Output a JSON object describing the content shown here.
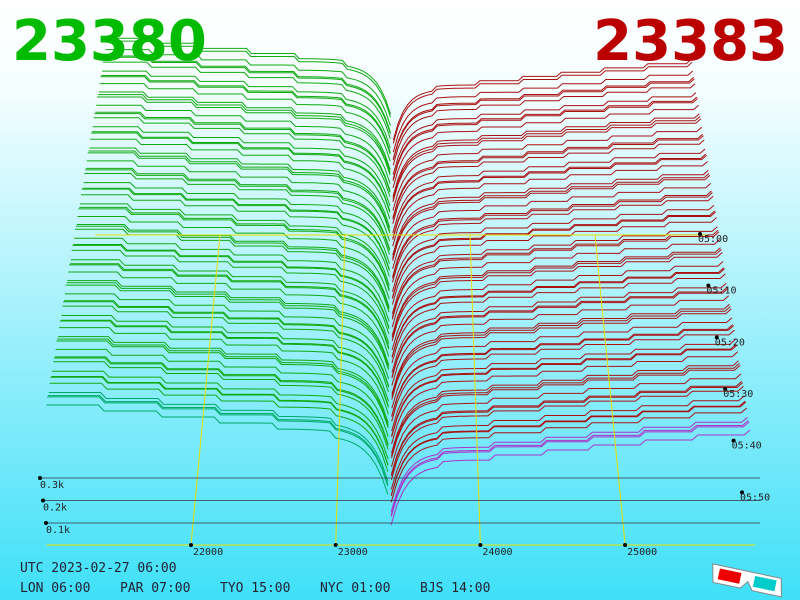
{
  "header": {
    "bid": 23380,
    "ask": 23383
  },
  "price_axis": {
    "labels": [
      22000,
      23000,
      24000,
      25000
    ]
  },
  "time_axis": {
    "labels": [
      "05:00",
      "05:10",
      "05:20",
      "05:30",
      "05:40",
      "05:50"
    ]
  },
  "depth_axis": {
    "labels": [
      "0.3k",
      "0.2k",
      "0.1k"
    ]
  },
  "footer": {
    "utc": "UTC 2023-02-27 06:00",
    "clocks": [
      "LON 06:00",
      "PAR 07:00",
      "TYO 15:00",
      "NYC 01:00",
      "BJS 14:00"
    ]
  }
}
